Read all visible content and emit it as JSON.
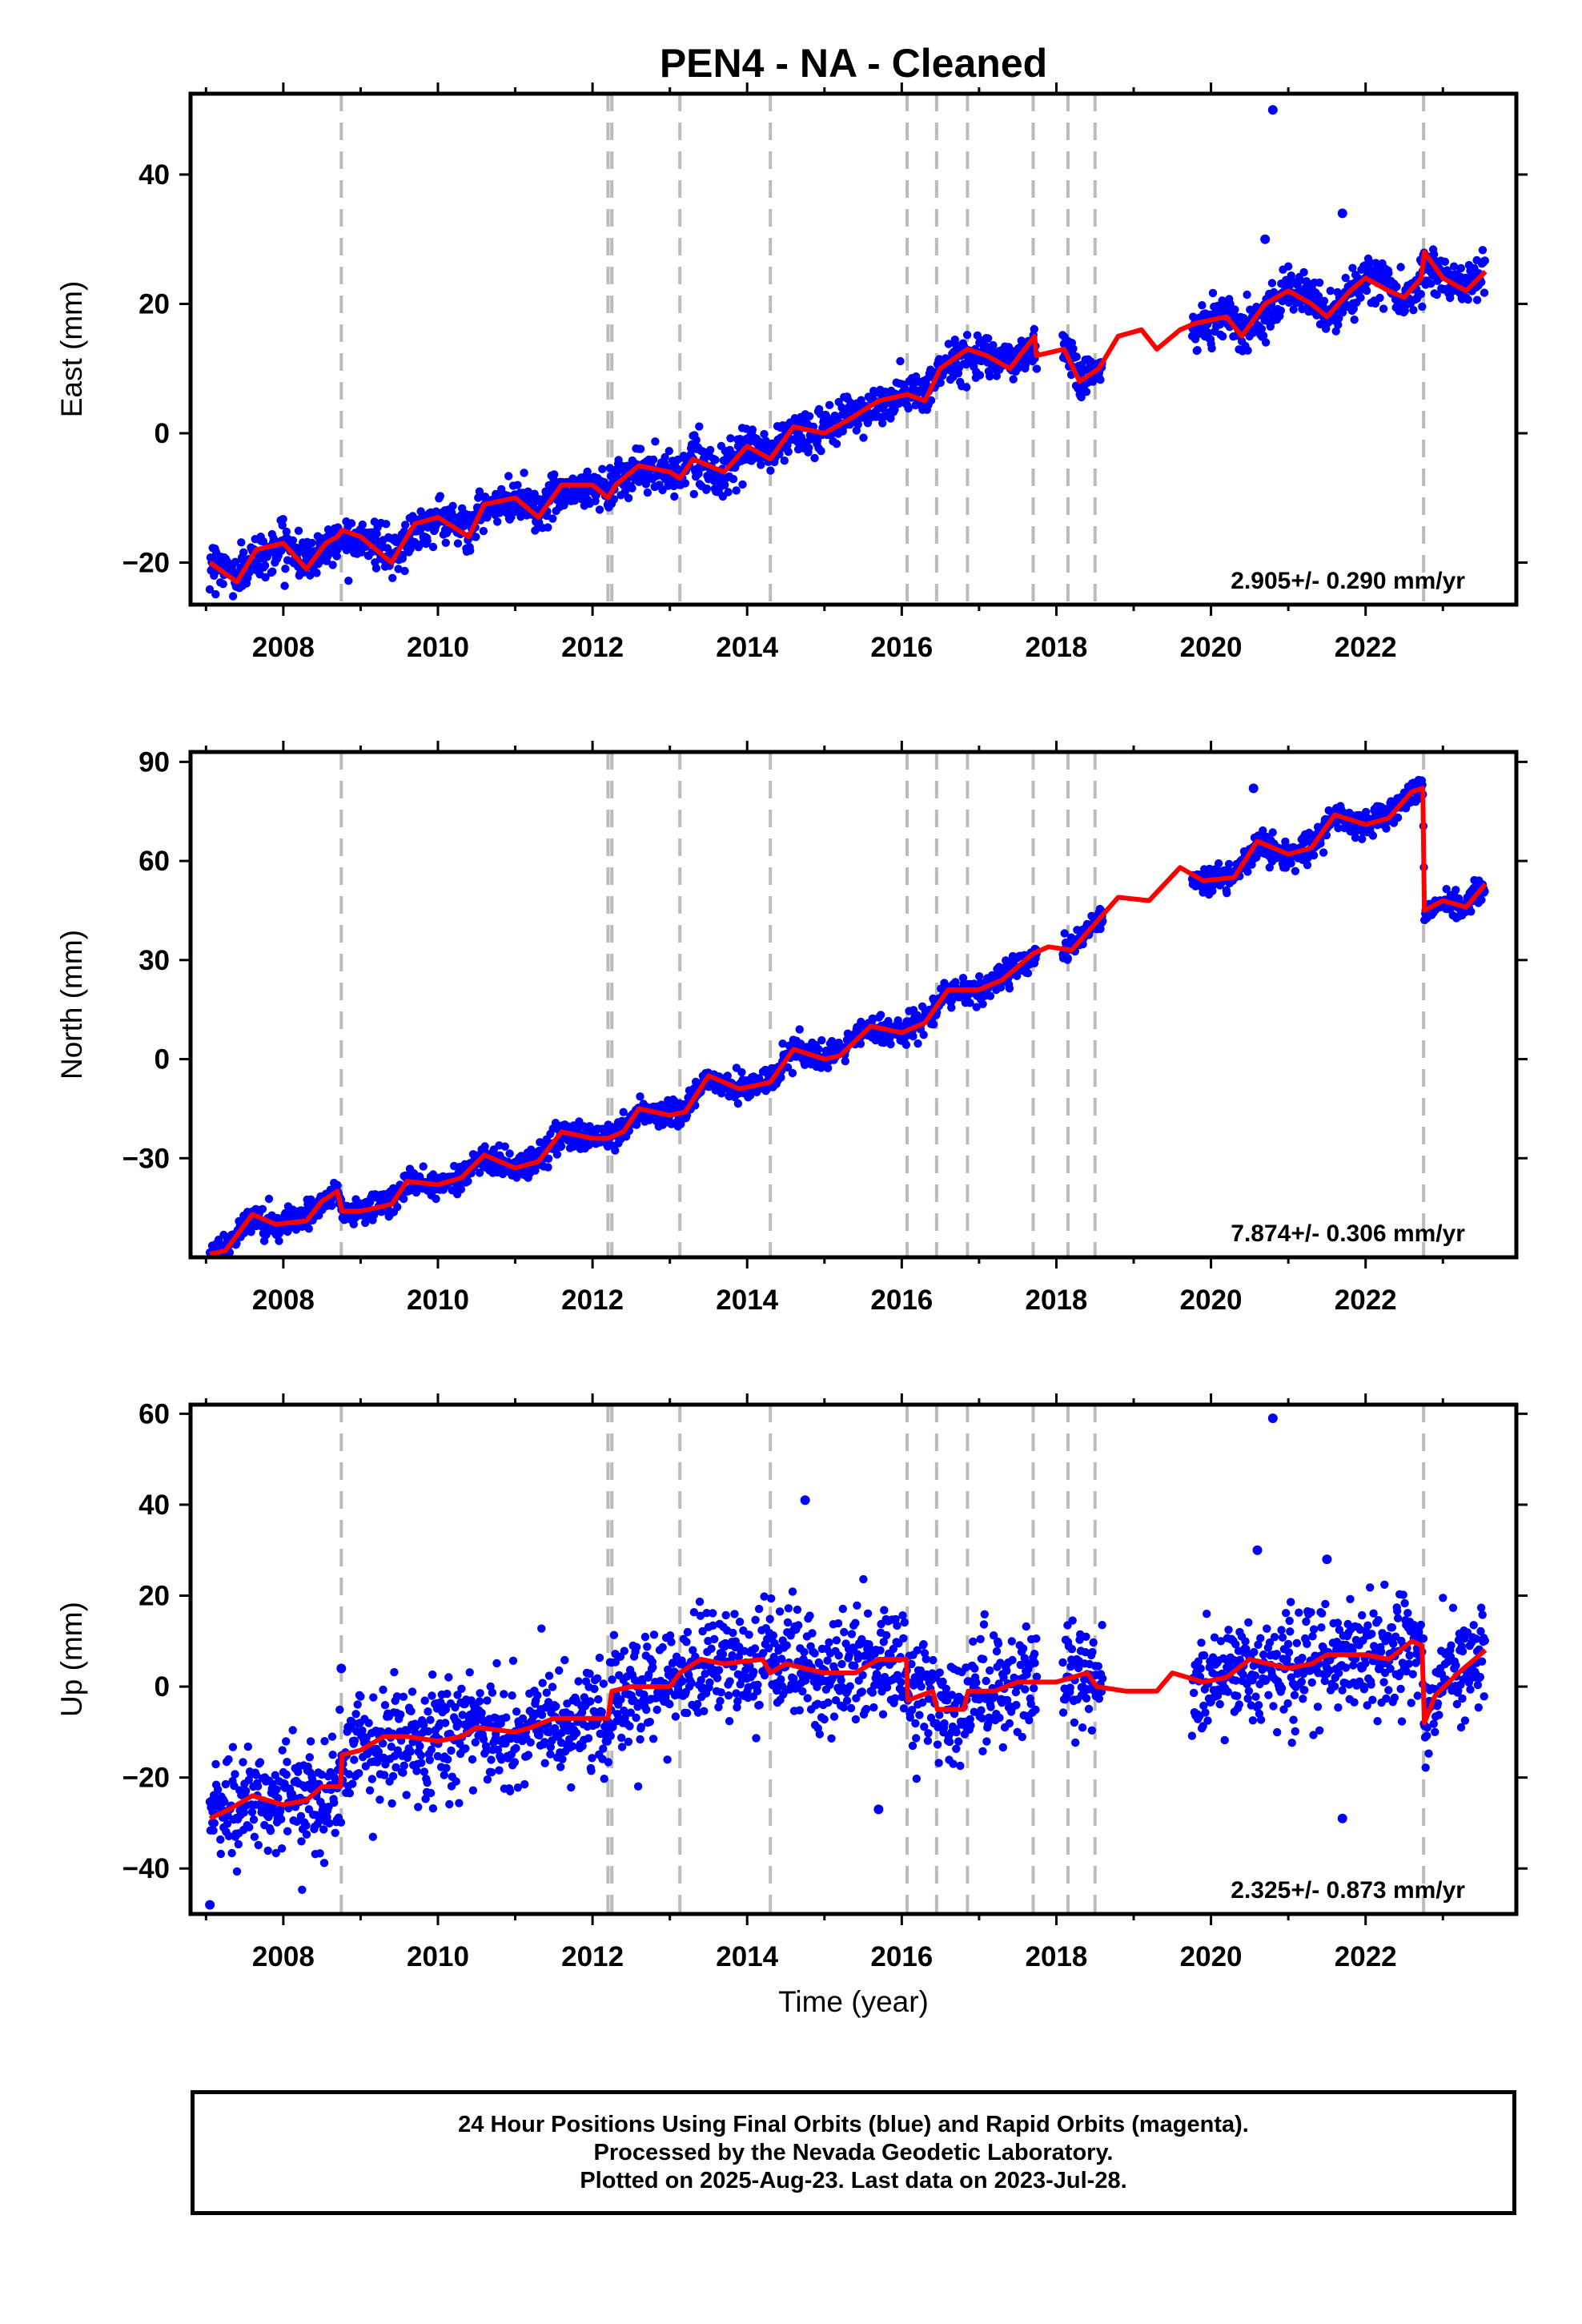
{
  "chart_data": {
    "title": "PEN4  - NA - Cleaned",
    "xlabel": "Time (year)",
    "xlim": [
      2006.8,
      2023.95
    ],
    "x_ticks": [
      2008,
      2010,
      2012,
      2014,
      2016,
      2018,
      2020,
      2022
    ],
    "x_tick_labels": [
      "2008",
      "2010",
      "2012",
      "2014",
      "2016",
      "2018",
      "2020",
      "2022"
    ],
    "equipment_change_lines": [
      2008.75,
      2012.2,
      2012.25,
      2013.13,
      2014.3,
      2016.07,
      2016.45,
      2016.85,
      2017.7,
      2018.15,
      2018.5,
      2022.75
    ],
    "data_gaps": [
      [
        2017.75,
        2018.08
      ],
      [
        2018.6,
        2019.75
      ]
    ],
    "series_colors": {
      "daily_positions": "#0000ff",
      "model_fit": "#ff0000",
      "event_lines": "#bbbbbb"
    },
    "panels": [
      {
        "type": "scatter",
        "ylabel": "East (mm)",
        "ylim": [
          -26.5,
          52.5
        ],
        "y_ticks": [
          -20,
          0,
          20,
          40
        ],
        "y_tick_labels": [
          "−20",
          "0",
          "20",
          "40"
        ],
        "rate_label": "2.905+/- 0.290 mm/yr",
        "model": {
          "x": [
            2007.05,
            2007.4,
            2007.65,
            2008.0,
            2008.3,
            2008.55,
            2008.7,
            2008.76,
            2009.0,
            2009.4,
            2009.7,
            2010.0,
            2010.4,
            2010.6,
            2011.0,
            2011.3,
            2011.6,
            2012.0,
            2012.2,
            2012.3,
            2012.6,
            2013.0,
            2013.13,
            2013.3,
            2013.7,
            2014.0,
            2014.3,
            2014.6,
            2015.0,
            2015.3,
            2015.7,
            2016.07,
            2016.3,
            2016.5,
            2016.85,
            2017.1,
            2017.4,
            2017.72,
            2017.74,
            2018.1,
            2018.3,
            2018.55,
            2018.8,
            2019.1,
            2019.3,
            2019.6,
            2019.8,
            2020.2,
            2020.4,
            2020.7,
            2021.0,
            2021.3,
            2021.5,
            2021.8,
            2022.0,
            2022.3,
            2022.5,
            2022.72,
            2022.76,
            2023.0,
            2023.3,
            2023.55
          ],
          "y": [
            -20,
            -23,
            -18,
            -17,
            -21,
            -17,
            -16,
            -15,
            -16,
            -20,
            -14,
            -13,
            -16,
            -11,
            -10,
            -13,
            -8,
            -8,
            -10,
            -8,
            -5,
            -6,
            -7,
            -4,
            -6,
            -2,
            -4,
            1,
            0,
            2,
            5,
            6,
            5,
            10,
            13,
            12,
            10,
            15,
            12,
            13,
            8,
            10,
            15,
            16,
            13,
            16,
            17,
            18,
            15,
            20,
            22,
            20,
            18,
            22,
            24,
            22,
            21,
            24,
            28,
            24,
            22,
            25
          ],
          "amplitude": 3.0,
          "step": 1.6
        },
        "outliers": [
          [
            2020.8,
            50
          ],
          [
            2021.7,
            34
          ],
          [
            2020.7,
            30
          ]
        ]
      },
      {
        "type": "scatter",
        "ylabel": "North (mm)",
        "ylim": [
          -60,
          93
        ],
        "y_ticks": [
          -30,
          0,
          30,
          60,
          90
        ],
        "y_tick_labels": [
          "−30",
          "0",
          "30",
          "60",
          "90"
        ],
        "rate_label": "7.874+/- 0.306 mm/yr",
        "model": {
          "x": [
            2007.05,
            2007.25,
            2007.6,
            2007.9,
            2008.3,
            2008.5,
            2008.7,
            2008.76,
            2009.0,
            2009.4,
            2009.6,
            2010.0,
            2010.3,
            2010.6,
            2011.0,
            2011.3,
            2011.6,
            2012.0,
            2012.2,
            2012.4,
            2012.6,
            2013.0,
            2013.2,
            2013.5,
            2013.9,
            2014.3,
            2014.6,
            2015.0,
            2015.2,
            2015.6,
            2016.0,
            2016.3,
            2016.6,
            2017.0,
            2017.3,
            2017.7,
            2017.9,
            2018.2,
            2018.5,
            2018.8,
            2019.2,
            2019.6,
            2019.9,
            2020.3,
            2020.6,
            2021.0,
            2021.3,
            2021.6,
            2022.0,
            2022.3,
            2022.6,
            2022.74,
            2022.76,
            2023.0,
            2023.3,
            2023.55
          ],
          "y": [
            -59,
            -58,
            -47,
            -50,
            -49,
            -43,
            -40,
            -46,
            -46,
            -44,
            -37,
            -38,
            -36,
            -29,
            -33,
            -31,
            -22,
            -24,
            -24,
            -22,
            -15,
            -17,
            -16,
            -5,
            -9,
            -7,
            3,
            0,
            1,
            10,
            8,
            11,
            21,
            21,
            24,
            32,
            34,
            33,
            41,
            49,
            48,
            58,
            54,
            55,
            66,
            62,
            64,
            74,
            71,
            73,
            81,
            82,
            45,
            48,
            46,
            53
          ],
          "amplitude": 2.4,
          "step": 2.0
        },
        "outliers": [
          [
            2020.55,
            82
          ]
        ]
      },
      {
        "type": "scatter",
        "ylabel": "Up (mm)",
        "ylim": [
          -50,
          62
        ],
        "y_ticks": [
          -40,
          -20,
          0,
          20,
          40,
          60
        ],
        "y_tick_labels": [
          "−40",
          "−20",
          "0",
          "20",
          "40",
          "60"
        ],
        "rate_label": "2.325+/- 0.873 mm/yr",
        "model": {
          "x": [
            2007.05,
            2007.3,
            2007.6,
            2008.0,
            2008.3,
            2008.5,
            2008.74,
            2008.76,
            2009.0,
            2009.3,
            2009.6,
            2010.0,
            2010.3,
            2010.5,
            2011.0,
            2011.2,
            2011.5,
            2012.0,
            2012.2,
            2012.25,
            2012.5,
            2013.0,
            2013.13,
            2013.4,
            2013.7,
            2014.2,
            2014.3,
            2014.5,
            2015.0,
            2015.4,
            2015.7,
            2016.06,
            2016.08,
            2016.4,
            2016.46,
            2016.8,
            2016.86,
            2017.2,
            2017.5,
            2018.0,
            2018.4,
            2018.52,
            2018.9,
            2019.3,
            2019.5,
            2019.9,
            2020.2,
            2020.5,
            2021.0,
            2021.3,
            2021.5,
            2021.8,
            2022.0,
            2022.3,
            2022.6,
            2022.73,
            2022.76,
            2022.9,
            2023.2,
            2023.55
          ],
          "y": [
            -29,
            -27,
            -24,
            -26,
            -25,
            -22,
            -22,
            -15,
            -14,
            -11,
            -11,
            -12,
            -11,
            -9,
            -10,
            -9,
            -7,
            -7,
            -7,
            -1,
            0,
            0,
            3,
            6,
            5,
            6,
            3,
            5,
            3,
            3,
            6,
            6,
            -3,
            -1,
            -5,
            -5,
            -1,
            -1,
            1,
            1,
            3,
            0,
            -1,
            -1,
            3,
            1,
            2,
            6,
            4,
            5,
            7,
            7,
            7,
            6,
            10,
            9,
            -8,
            -2,
            3,
            8
          ],
          "amplitude": 1.8,
          "step": 6.0
        },
        "outliers": [
          [
            2020.8,
            59
          ],
          [
            2014.75,
            41
          ],
          [
            2020.6,
            30
          ],
          [
            2021.5,
            28
          ],
          [
            2007.05,
            -48
          ],
          [
            2008.75,
            4
          ],
          [
            2021.7,
            -29
          ],
          [
            2015.7,
            -27
          ]
        ]
      }
    ]
  },
  "caption_lines": [
    "24 Hour Positions Using Final Orbits (blue) and Rapid Orbits (magenta).",
    "Processed by the Nevada Geodetic Laboratory.",
    "Plotted on 2025-Aug-23. Last data on 2023-Jul-28."
  ]
}
